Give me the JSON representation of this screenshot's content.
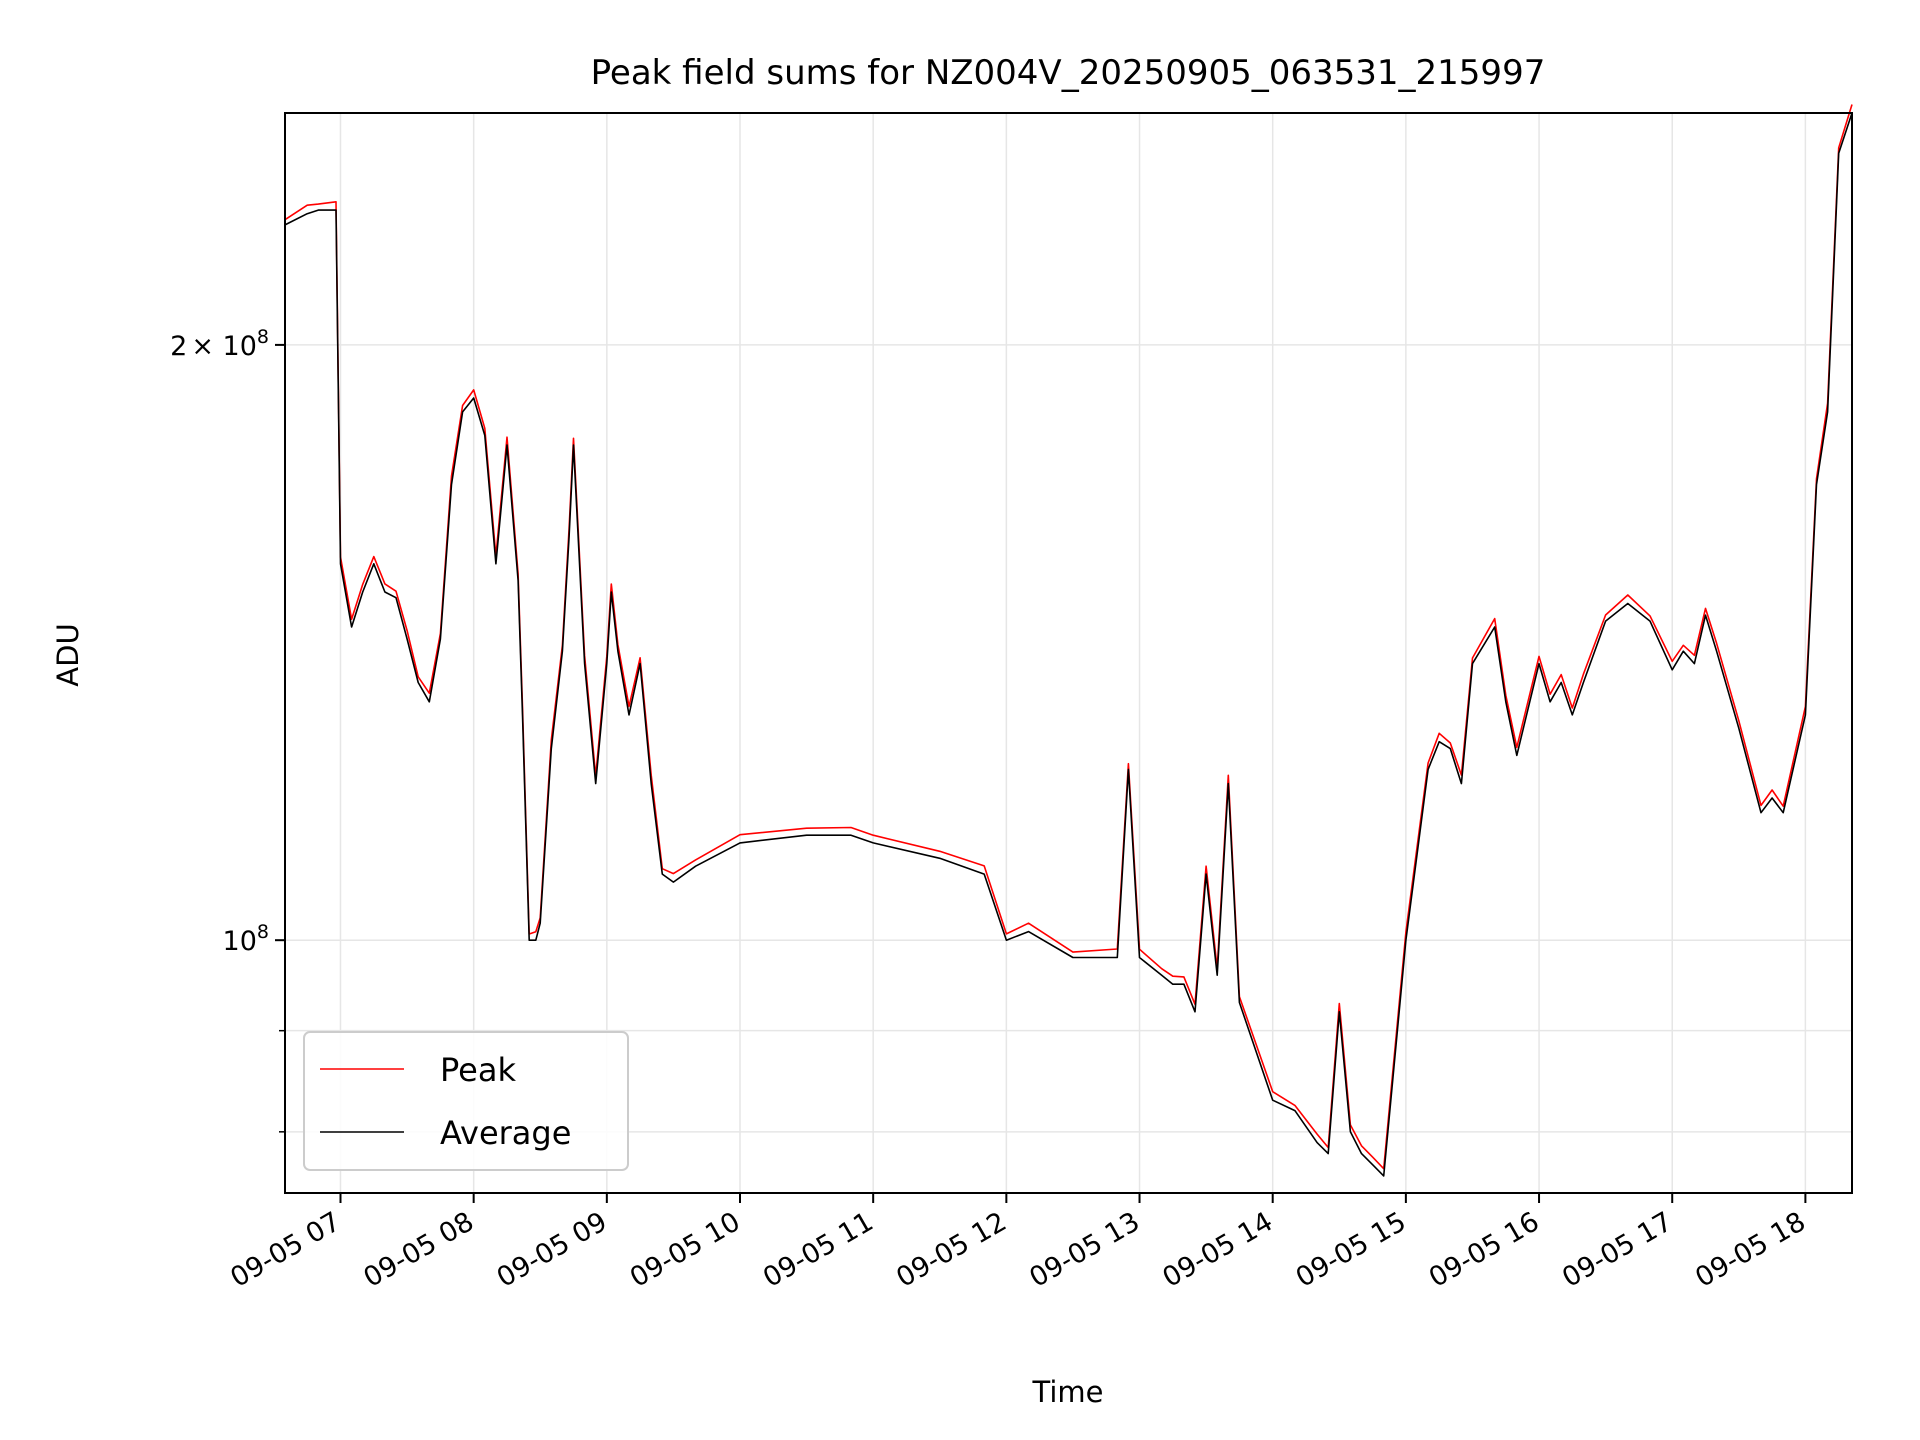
{
  "chart_data": {
    "type": "line",
    "title": "Peak field sums for NZ004V_20250905_063531_215997",
    "xlabel": "Time",
    "ylabel": "ADU",
    "yscale": "log",
    "xlim": [
      "2025-09-05 06:35",
      "2025-09-05 18:21"
    ],
    "ylim": [
      74500000.0,
      262000000.0
    ],
    "grid": true,
    "legend_position": "bottom-left",
    "x_tick_labels": [
      "09-05 07",
      "09-05 08",
      "09-05 09",
      "09-05 10",
      "09-05 11",
      "09-05 12",
      "09-05 13",
      "09-05 14",
      "09-05 15",
      "09-05 16",
      "09-05 17",
      "09-05 18"
    ],
    "y_tick_labels": [
      {
        "mantissa": "2",
        "times": "×",
        "base": "10",
        "exp": "8"
      },
      {
        "mantissa": "",
        "times": "",
        "base": "10",
        "exp": "8"
      }
    ],
    "series": [
      {
        "name": "Peak",
        "color": "#ff0000"
      },
      {
        "name": "Average",
        "color": "#000000"
      }
    ],
    "x": [
      "06:35",
      "06:45",
      "06:50",
      "06:58",
      "07:00",
      "07:05",
      "07:10",
      "07:15",
      "07:20",
      "07:25",
      "07:30",
      "07:35",
      "07:40",
      "07:45",
      "07:50",
      "07:55",
      "08:00",
      "08:05",
      "08:10",
      "08:15",
      "08:20",
      "08:22",
      "08:25",
      "08:28",
      "08:30",
      "08:35",
      "08:40",
      "08:43",
      "08:45",
      "08:50",
      "08:55",
      "09:00",
      "09:02",
      "09:05",
      "09:10",
      "09:15",
      "09:20",
      "09:25",
      "09:30",
      "09:40",
      "10:00",
      "10:30",
      "10:50",
      "11:00",
      "11:30",
      "11:50",
      "12:00",
      "12:10",
      "12:30",
      "12:50",
      "12:55",
      "13:00",
      "13:10",
      "13:15",
      "13:20",
      "13:25",
      "13:30",
      "13:35",
      "13:40",
      "13:45",
      "14:00",
      "14:10",
      "14:20",
      "14:25",
      "14:30",
      "14:35",
      "14:40",
      "14:45",
      "14:50",
      "15:00",
      "15:10",
      "15:15",
      "15:20",
      "15:25",
      "15:30",
      "15:40",
      "15:45",
      "15:50",
      "16:00",
      "16:05",
      "16:10",
      "16:15",
      "16:20",
      "16:30",
      "16:40",
      "16:50",
      "17:00",
      "17:05",
      "17:10",
      "17:15",
      "17:20",
      "17:30",
      "17:40",
      "17:45",
      "17:50",
      "18:00",
      "18:05",
      "18:10",
      "18:15",
      "18:21"
    ],
    "average": [
      230000000.0,
      233000000.0,
      234000000.0,
      234000000.0,
      155000000.0,
      144000000.0,
      150000000.0,
      155000000.0,
      150000000.0,
      149000000.0,
      142000000.0,
      135000000.0,
      132000000.0,
      142000000.0,
      170000000.0,
      185000000.0,
      188000000.0,
      180000000.0,
      155000000.0,
      178000000.0,
      152000000.0,
      130000000.0,
      100000000.0,
      100000000.0,
      102000000.0,
      125000000.0,
      140000000.0,
      160000000.0,
      178000000.0,
      138000000.0,
      120000000.0,
      138000000.0,
      150000000.0,
      140000000.0,
      130000000.0,
      138000000.0,
      120000000.0,
      108000000.0,
      107000000.0,
      109000000.0,
      112000000.0,
      113000000.0,
      113000000.0,
      112000000.0,
      110000000.0,
      108000000.0,
      100000000.0,
      101000000.0,
      98000000.0,
      98000000.0,
      122000000.0,
      98000000.0,
      96000000.0,
      95000000.0,
      95000000.0,
      92000000.0,
      108000000.0,
      96000000.0,
      120000000.0,
      93000000.0,
      83000000.0,
      82000000.0,
      79000000.0,
      78000000.0,
      92000000.0,
      80000000.0,
      78000000.0,
      77000000.0,
      76000000.0,
      100000000.0,
      122000000.0,
      126000000.0,
      125000000.0,
      120000000.0,
      138000000.0,
      144000000.0,
      132000000.0,
      124000000.0,
      138000000.0,
      132000000.0,
      135000000.0,
      130000000.0,
      135000000.0,
      145000000.0,
      148000000.0,
      145000000.0,
      137000000.0,
      140000000.0,
      138000000.0,
      146000000.0,
      140000000.0,
      128000000.0,
      116000000.0,
      118000000.0,
      116000000.0,
      130000000.0,
      170000000.0,
      185000000.0,
      250000000.0,
      262000000.0
    ]
  }
}
